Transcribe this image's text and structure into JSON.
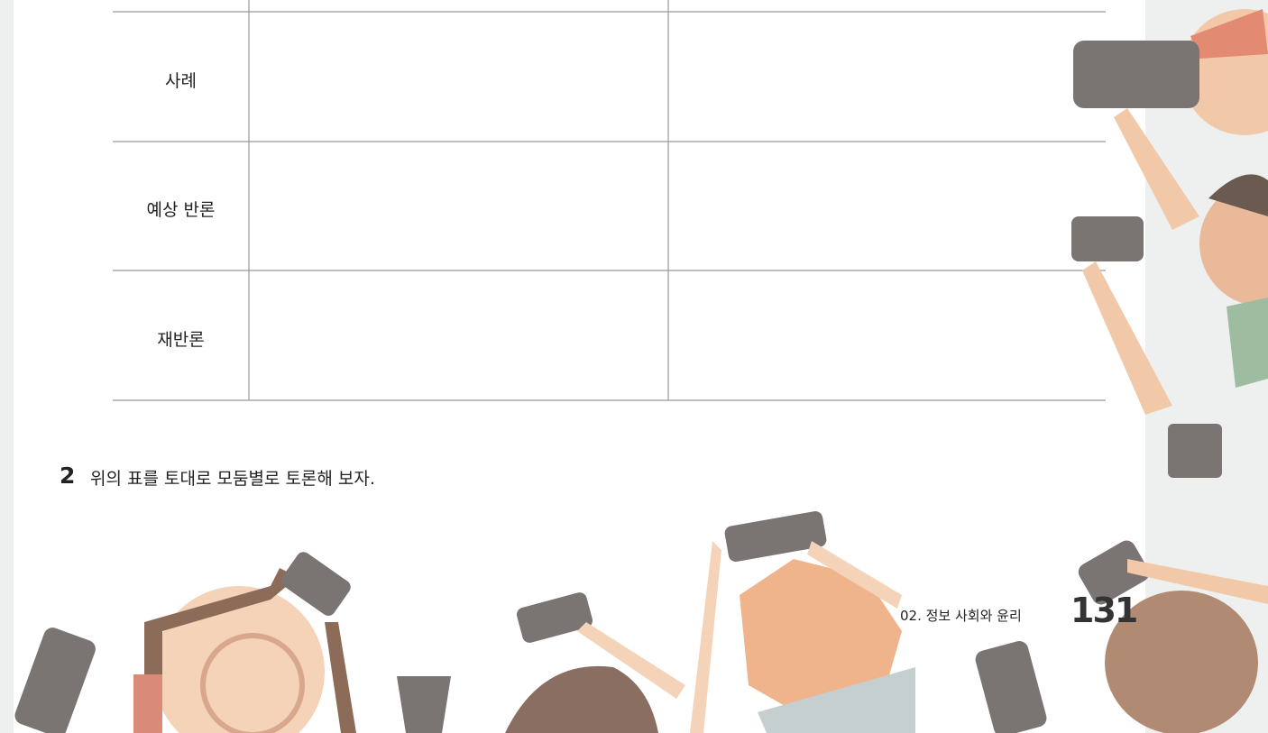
{
  "table": {
    "rows": [
      "사례",
      "예상 반론",
      "재반론"
    ]
  },
  "question": {
    "number": "2",
    "text": "위의 표를 토대로 모둠별로 토론해 보자."
  },
  "footer": {
    "section": "02. 정보 사회와 윤리",
    "page": "131"
  }
}
